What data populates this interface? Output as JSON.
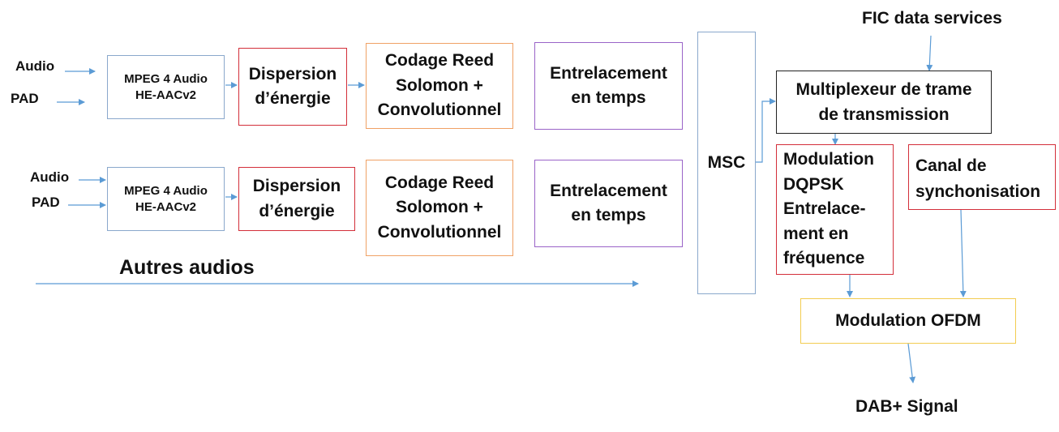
{
  "labels": {
    "audio": "Audio",
    "pad": "PAD",
    "fic": "FIC data services",
    "autres": "Autres audios",
    "dab": "DAB+ Signal"
  },
  "blocks": {
    "mpeg": "MPEG 4 Audio\nHE-AACv2",
    "dispersion": "Dispersion\nd’énergie",
    "codage": "Codage Reed\nSolomon +\nConvolutionnel",
    "entrelacement": "Entrelacement\nen temps",
    "msc": "MSC",
    "multiplexeur": "Multiplexeur de trame\nde transmission",
    "modulation_dqpsk": "Modulation\nDQPSK\nEntrelace-\nment en\nfréquence",
    "canal": "Canal de\nsynchonisation",
    "ofdm": "Modulation OFDM"
  },
  "colors": {
    "arrow": "#5b9bd5",
    "blue": "#8aa8cc",
    "red": "#d32f3a",
    "orange": "#f0a165",
    "purple": "#9a64c8",
    "black": "#222222",
    "yellow": "#f2cc50"
  }
}
